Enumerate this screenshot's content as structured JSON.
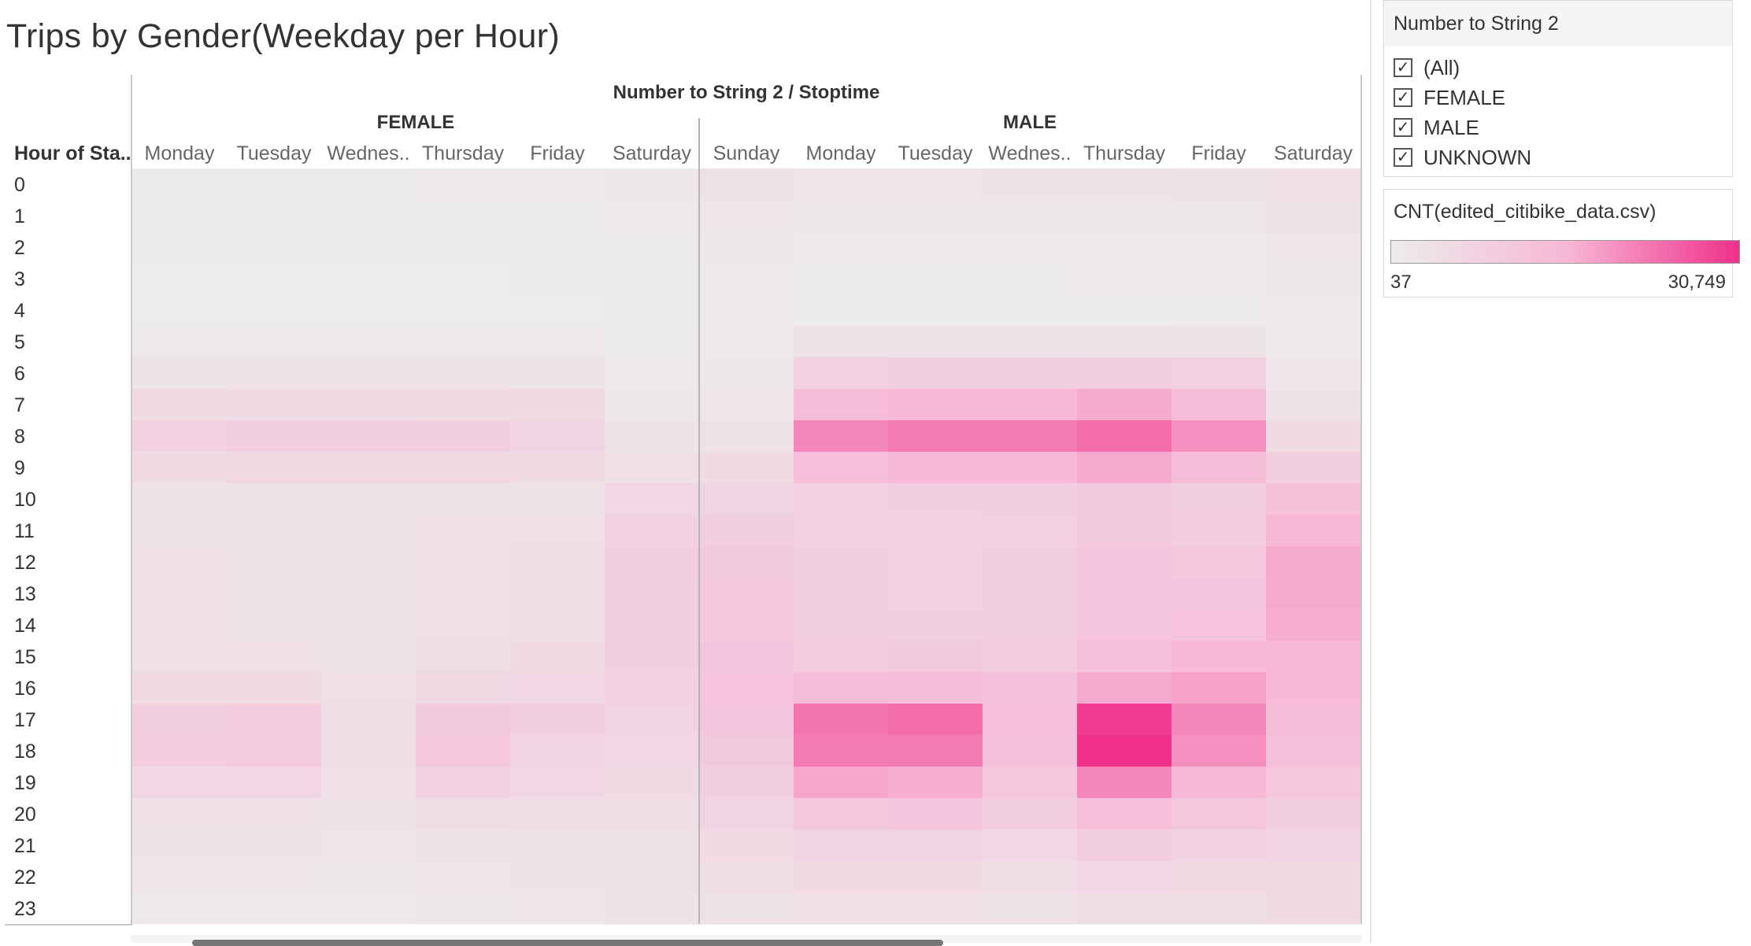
{
  "title": "Trips by Gender(Weekday per Hour)",
  "filter": {
    "title": "Number to String 2",
    "items": [
      {
        "label": "(All)",
        "checked": true
      },
      {
        "label": "FEMALE",
        "checked": true
      },
      {
        "label": "MALE",
        "checked": true
      },
      {
        "label": "UNKNOWN",
        "checked": true
      }
    ]
  },
  "legend": {
    "title": "CNT(edited_citibike_data.csv)",
    "min_label": "37",
    "max_label": "30,749",
    "colors": [
      "#ececec",
      "#f7b8d6",
      "#f0318b"
    ]
  },
  "chart_data": {
    "type": "heatmap",
    "title": "Trips by Gender(Weekday per Hour)",
    "column_header": "Number to String 2  /  Stoptime",
    "row_header": "Hour of Sta..",
    "groups": [
      {
        "name": "FEMALE",
        "columns": [
          "Monday",
          "Tuesday",
          "Wednes..",
          "Thursday",
          "Friday",
          "Saturday"
        ]
      },
      {
        "name": "MALE",
        "columns": [
          "Sunday",
          "Monday",
          "Tuesday",
          "Wednes..",
          "Thursday",
          "Friday",
          "Saturday"
        ]
      }
    ],
    "rows": [
      "0",
      "1",
      "2",
      "3",
      "4",
      "5",
      "6",
      "7",
      "8",
      "9",
      "10",
      "11",
      "12",
      "13",
      "14",
      "15",
      "16",
      "17",
      "18",
      "19",
      "20",
      "21",
      "22",
      "23"
    ],
    "value_range": [
      37,
      30749
    ],
    "values": [
      [
        700,
        650,
        700,
        800,
        900,
        1500,
        3000,
        2300,
        2400,
        2600,
        2800,
        2900,
        4000
      ],
      [
        400,
        350,
        400,
        450,
        500,
        1000,
        2000,
        1500,
        1500,
        1600,
        1700,
        1800,
        2900
      ],
      [
        250,
        220,
        250,
        280,
        300,
        700,
        1500,
        1000,
        1000,
        1000,
        1100,
        1200,
        2000
      ],
      [
        150,
        140,
        150,
        170,
        200,
        450,
        1200,
        700,
        700,
        700,
        800,
        900,
        1500
      ],
      [
        150,
        150,
        150,
        170,
        180,
        300,
        900,
        600,
        600,
        600,
        700,
        700,
        1000
      ],
      [
        800,
        850,
        850,
        900,
        800,
        500,
        1000,
        3000,
        3000,
        3000,
        3100,
        2800,
        1000
      ],
      [
        2800,
        3000,
        3000,
        3000,
        2800,
        900,
        1500,
        8000,
        8500,
        8500,
        9000,
        7800,
        2000
      ],
      [
        5000,
        5500,
        5500,
        5500,
        5000,
        1500,
        2200,
        14500,
        15000,
        15000,
        17000,
        14000,
        3000
      ],
      [
        8000,
        8500,
        8500,
        9000,
        7500,
        2500,
        3000,
        21000,
        22500,
        22500,
        24000,
        20000,
        5500
      ],
      [
        5500,
        6000,
        6000,
        6000,
        5500,
        4000,
        5000,
        13500,
        15000,
        15000,
        17000,
        14000,
        9000
      ],
      [
        3000,
        3200,
        3200,
        3500,
        3500,
        6500,
        7000,
        8000,
        8500,
        8500,
        10500,
        9000,
        12500
      ],
      [
        3200,
        3300,
        3300,
        3700,
        4000,
        8000,
        9000,
        8000,
        8000,
        8300,
        10500,
        9500,
        15000
      ],
      [
        3800,
        3500,
        3500,
        4000,
        4500,
        9000,
        10500,
        9000,
        8000,
        8500,
        11500,
        11000,
        17000
      ],
      [
        3800,
        3400,
        3500,
        4000,
        4500,
        9000,
        11000,
        9000,
        8000,
        8500,
        11500,
        11500,
        17000
      ],
      [
        3800,
        3500,
        3500,
        4000,
        4600,
        9000,
        11000,
        9000,
        8500,
        8800,
        11500,
        12000,
        16500
      ],
      [
        4000,
        3800,
        3000,
        4500,
        5500,
        8500,
        11500,
        10000,
        10500,
        9500,
        13000,
        15000,
        15500
      ],
      [
        5000,
        5000,
        3800,
        6000,
        6500,
        8000,
        12000,
        14000,
        14000,
        13000,
        17000,
        18000,
        15000
      ],
      [
        9000,
        9500,
        4500,
        10500,
        9000,
        7500,
        11500,
        23000,
        24000,
        13500,
        29500,
        21000,
        14000
      ],
      [
        9500,
        10000,
        4500,
        11000,
        7500,
        6500,
        10500,
        22500,
        22500,
        13000,
        30749,
        20000,
        13000
      ],
      [
        6500,
        6500,
        4000,
        8000,
        6500,
        5500,
        9000,
        17500,
        16500,
        11000,
        21000,
        15000,
        11000
      ],
      [
        3800,
        3800,
        3000,
        4500,
        4300,
        4200,
        7000,
        11000,
        11500,
        9000,
        13500,
        11000,
        9000
      ],
      [
        2800,
        2700,
        2300,
        3200,
        3200,
        3300,
        5500,
        7500,
        7500,
        6500,
        9000,
        8000,
        7500
      ],
      [
        2000,
        2000,
        1700,
        2400,
        2500,
        3000,
        4200,
        5500,
        5500,
        4800,
        6500,
        6000,
        6000
      ],
      [
        1300,
        1200,
        1100,
        1500,
        2000,
        2500,
        3500,
        3800,
        3800,
        3300,
        4500,
        4500,
        5000
      ]
    ]
  }
}
